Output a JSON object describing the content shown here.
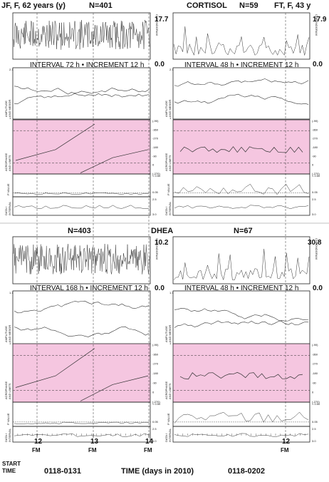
{
  "figure": {
    "cortisol": {
      "hormone": "CORTISOL",
      "left": {
        "subject": "JF, F, 62 years (y)",
        "n": "N=401",
        "chrono_max": "17.7",
        "chrono_min": "0.0",
        "interval": "INTERVAL 72 h • INCREMENT 12 h"
      },
      "right": {
        "subject": "FT, F, 43 y",
        "n": "N=59",
        "chrono_max": "17.9",
        "chrono_min": "0.0",
        "interval": "INTERVAL 48 h • INCREMENT 12 h"
      }
    },
    "dhea": {
      "hormone": "DHEA",
      "left": {
        "n": "N=403",
        "chrono_max": "10.2",
        "chrono_min": "0.0",
        "interval": "INTERVAL 168 h • INCREMENT 12 h"
      },
      "right": {
        "n": "N=67",
        "chrono_max": "30.8",
        "chrono_min": "0.0",
        "interval": "INTERVAL 48 h • INCREMENT 12 h"
      }
    },
    "row_labels": {
      "chronogram": "CHRONOGRAM",
      "amplitude": "AMPLITUDE",
      "and_mesor": "AND MESOR",
      "acrophase": "ACROPHASE",
      "and_limits": "AND LIMITS",
      "p_value": "P VALUE",
      "data": "DATA /",
      "interval": "INTERVAL"
    },
    "amp_ticks": [
      "2.1",
      "1"
    ],
    "amp_ticks_dhea": [
      "1.1",
      "1"
    ],
    "phase_ticks": [
      "(-90)",
      "-360",
      "-270",
      "-180",
      "-90",
      "0",
      "(-270)"
    ],
    "p_ticks": [
      "< 0.50",
      "0.05"
    ],
    "data_ticks": [
      "2.5",
      "3.0"
    ],
    "x_axis": {
      "left_ticks": [
        "12",
        "13",
        "14"
      ],
      "right_ticks": [
        "12"
      ],
      "fm": "FM",
      "start_label_1": "START",
      "start_label_2": "TIME",
      "left_range": "0118-0131",
      "title": "TIME (days in 2010)",
      "right_range": "0118-0202"
    }
  },
  "colors": {
    "band": "#f5c6e0",
    "line": "#333333"
  },
  "chart_data": [
    {
      "type": "line",
      "title": "CORTISOL",
      "panel": "JF, F, 62 years (y) N=401",
      "x": "TIME (days in 2010) 0118-0131",
      "xticks": [
        "12",
        "13",
        "14"
      ],
      "ylim": [
        0.0,
        17.7
      ],
      "rows": [
        "CHRONOGRAM",
        "AMPLITUDE AND MESOR",
        "ACROPHASE AND LIMITS",
        "P VALUE",
        "DATA / INTERVAL"
      ],
      "interval": "INTERVAL 72 h • INCREMENT 12 h"
    },
    {
      "type": "line",
      "title": "CORTISOL",
      "panel": "FT, F, 43 y N=59",
      "x": "TIME (days in 2010) 0118-0202",
      "xticks": [
        "12"
      ],
      "ylim": [
        0.0,
        17.9
      ],
      "interval": "INTERVAL 48 h • INCREMENT 12 h"
    },
    {
      "type": "line",
      "title": "DHEA",
      "panel": "N=403",
      "x": "TIME (days in 2010) 0118-0131",
      "xticks": [
        "12",
        "13",
        "14"
      ],
      "ylim": [
        0.0,
        10.2
      ],
      "interval": "INTERVAL 168 h • INCREMENT 12 h"
    },
    {
      "type": "line",
      "title": "DHEA",
      "panel": "N=67",
      "x": "TIME (days in 2010) 0118-0202",
      "xticks": [
        "12"
      ],
      "ylim": [
        0.0,
        30.8
      ],
      "interval": "INTERVAL 48 h • INCREMENT 12 h"
    }
  ]
}
